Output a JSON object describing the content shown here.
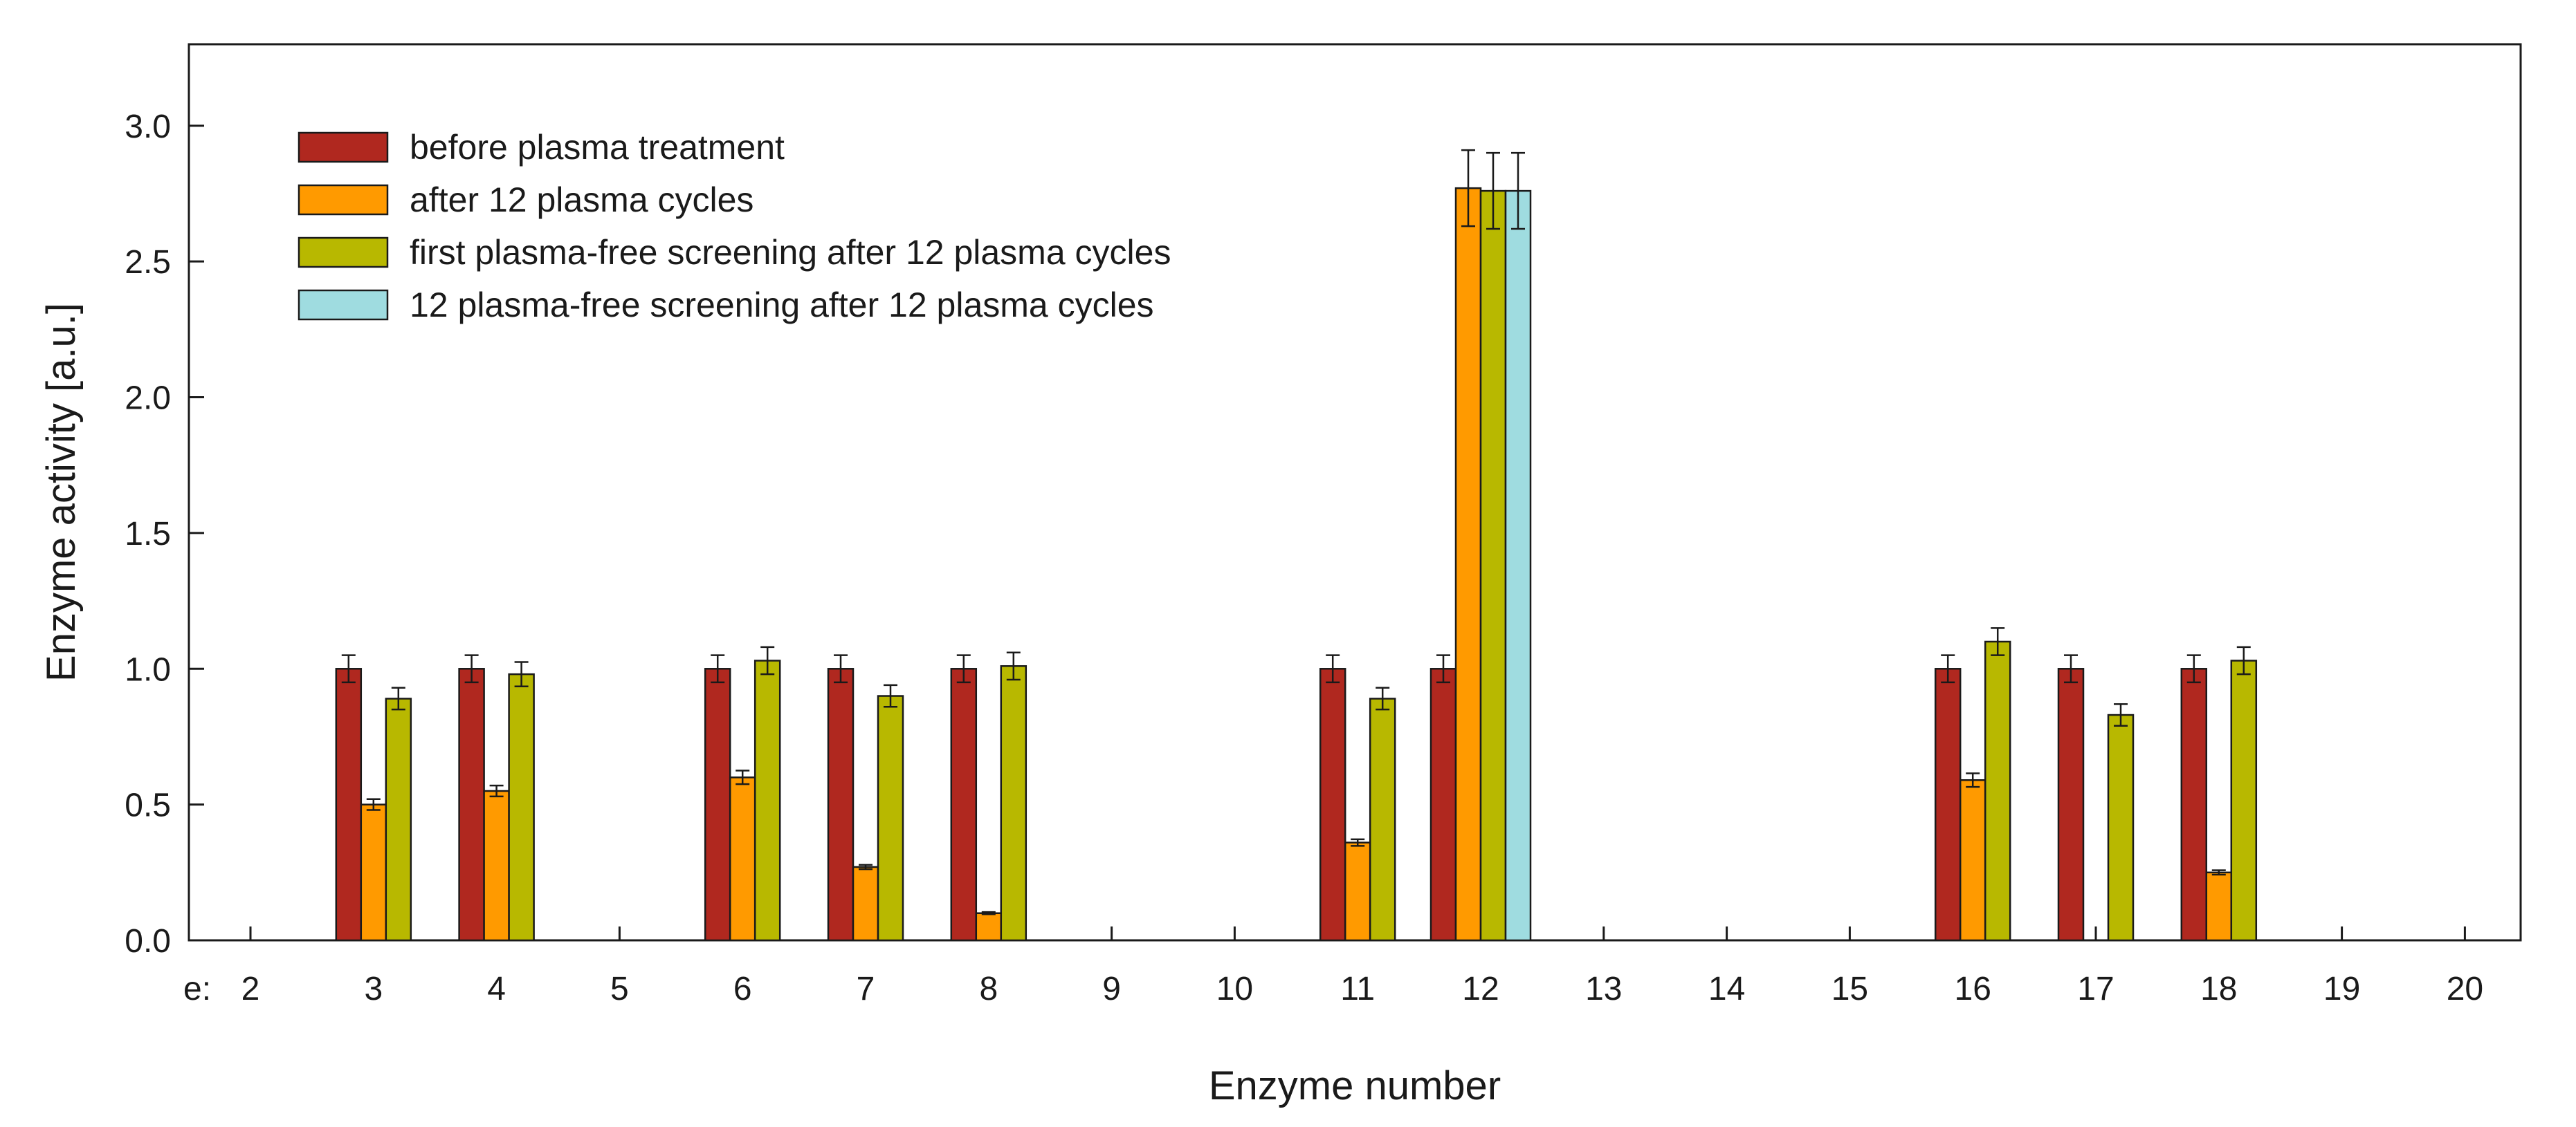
{
  "chart_data": {
    "type": "bar",
    "title": "",
    "xlabel": "Enzyme number",
    "ylabel": "Enzyme activity [a.u.]",
    "ylim": [
      0,
      3.3
    ],
    "yticks": [
      "0.0",
      "0.5",
      "1.0",
      "1.5",
      "2.0",
      "2.5",
      "3.0"
    ],
    "xprefix": "e:",
    "categories": [
      "2",
      "3",
      "4",
      "5",
      "6",
      "7",
      "8",
      "9",
      "10",
      "11",
      "12",
      "13",
      "14",
      "15",
      "16",
      "17",
      "18",
      "19",
      "20"
    ],
    "legend_position": "top-left",
    "grid": false,
    "series": [
      {
        "name": "before plasma treatment",
        "color": "#b0281f",
        "values": [
          null,
          1.0,
          1.0,
          null,
          1.0,
          1.0,
          1.0,
          null,
          null,
          1.0,
          1.0,
          null,
          null,
          null,
          1.0,
          1.0,
          1.0,
          null,
          null
        ],
        "errors": [
          null,
          0.05,
          0.05,
          null,
          0.05,
          0.05,
          0.05,
          null,
          null,
          0.05,
          0.05,
          null,
          null,
          null,
          0.05,
          0.05,
          0.05,
          null,
          null
        ]
      },
      {
        "name": "after 12 plasma cycles",
        "color": "#ff9a00",
        "values": [
          null,
          0.5,
          0.55,
          null,
          0.6,
          0.27,
          0.1,
          null,
          null,
          0.36,
          2.77,
          null,
          null,
          null,
          0.59,
          null,
          0.25,
          null,
          null
        ],
        "errors": [
          null,
          0.02,
          0.02,
          null,
          0.025,
          0.008,
          0.004,
          null,
          null,
          0.012,
          0.14,
          null,
          null,
          null,
          0.025,
          null,
          0.008,
          null,
          null
        ]
      },
      {
        "name": "first plasma-free screening after 12 plasma cycles",
        "color": "#b8b800",
        "values": [
          null,
          0.89,
          0.98,
          null,
          1.03,
          0.9,
          1.01,
          null,
          null,
          0.89,
          2.76,
          null,
          null,
          null,
          1.1,
          0.83,
          1.03,
          null,
          null
        ],
        "errors": [
          null,
          0.04,
          0.045,
          null,
          0.05,
          0.04,
          0.05,
          null,
          null,
          0.04,
          0.14,
          null,
          null,
          null,
          0.05,
          0.04,
          0.05,
          null,
          null
        ]
      },
      {
        "name": "12 plasma-free screening after 12 plasma cycles",
        "color": "#9fdce0",
        "values": [
          null,
          null,
          null,
          null,
          null,
          null,
          null,
          null,
          null,
          null,
          2.76,
          null,
          null,
          null,
          null,
          null,
          null,
          null,
          null
        ],
        "errors": [
          null,
          null,
          null,
          null,
          null,
          null,
          null,
          null,
          null,
          null,
          0.14,
          null,
          null,
          null,
          null,
          null,
          null,
          null,
          null
        ]
      }
    ]
  }
}
